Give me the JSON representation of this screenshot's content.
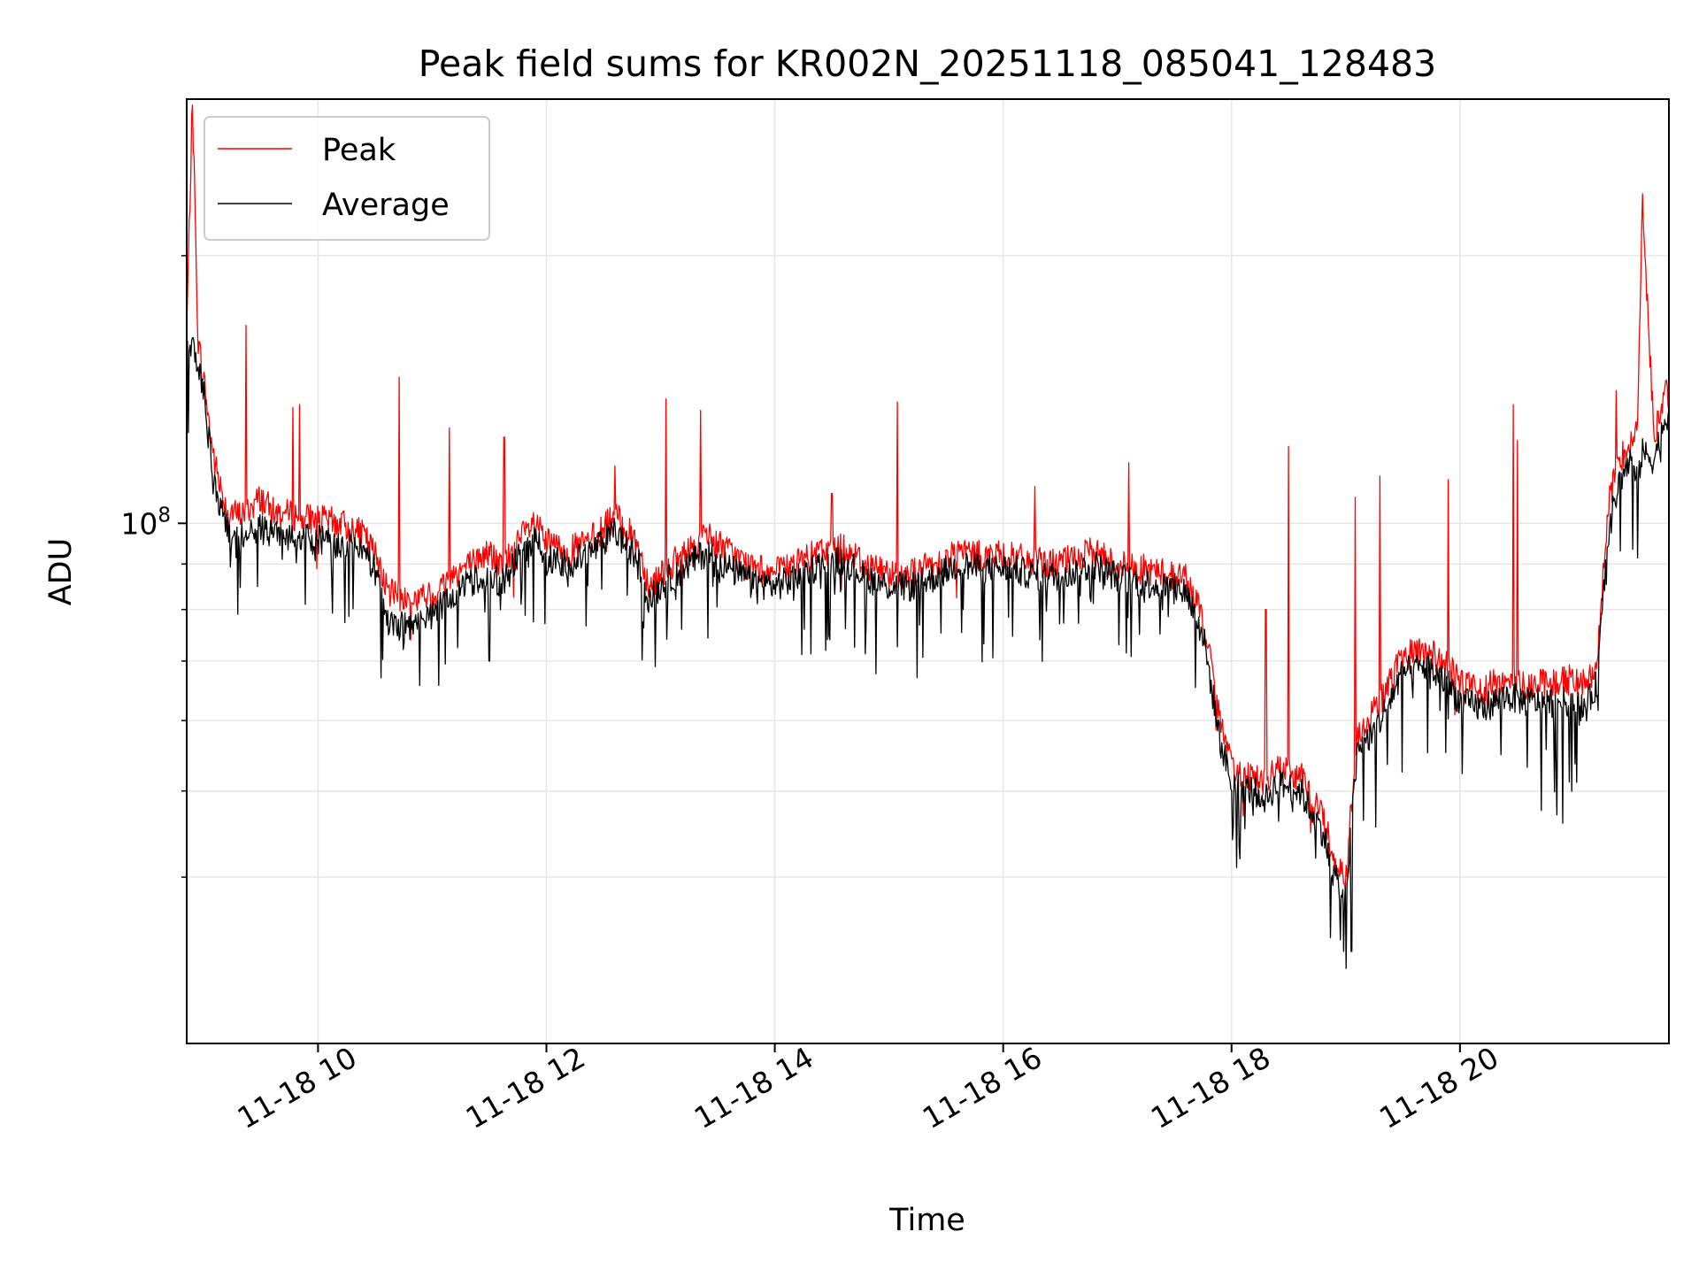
{
  "chart_data": {
    "type": "line",
    "title": "Peak field sums for KR002N_20251118_085041_128483",
    "xlabel": "Time",
    "ylabel": "ADU",
    "yscale": "log",
    "ylim": [
      26000000,
      300000000
    ],
    "xlim": [
      8.85,
      21.83
    ],
    "grid": true,
    "legend_position": "top-left",
    "x_ticks": [
      {
        "value": 10,
        "label": "11-18 10"
      },
      {
        "value": 12,
        "label": "11-18 12"
      },
      {
        "value": 14,
        "label": "11-18 14"
      },
      {
        "value": 16,
        "label": "11-18 16"
      },
      {
        "value": 18,
        "label": "11-18 18"
      },
      {
        "value": 20,
        "label": "11-18 20"
      }
    ],
    "y_major_tick": {
      "value": 100000000,
      "base": "10",
      "exponent": "8"
    },
    "y_minor_ticks": [
      40000000,
      50000000,
      60000000,
      70000000,
      80000000,
      90000000,
      200000000,
      300000000
    ],
    "series": [
      {
        "name": "Peak",
        "color": "#ff0000",
        "x": [
          8.85,
          8.9,
          8.95,
          9.0,
          9.05,
          9.1,
          9.2,
          9.3,
          9.4,
          9.5,
          9.6,
          9.8,
          10.0,
          10.2,
          10.4,
          10.55,
          10.6,
          10.8,
          11.0,
          11.2,
          11.4,
          11.5,
          11.6,
          11.8,
          11.9,
          12.0,
          12.2,
          12.4,
          12.6,
          12.8,
          12.9,
          13.0,
          13.2,
          13.4,
          13.6,
          13.8,
          14.0,
          14.2,
          14.4,
          14.6,
          14.8,
          15.0,
          15.2,
          15.4,
          15.6,
          15.8,
          16.0,
          16.2,
          16.4,
          16.6,
          16.8,
          17.0,
          17.2,
          17.4,
          17.6,
          17.75,
          17.9,
          18.0,
          18.2,
          18.3,
          18.4,
          18.6,
          18.8,
          18.9,
          19.0,
          19.1,
          19.3,
          19.5,
          19.7,
          19.9,
          20.0,
          20.2,
          20.4,
          20.6,
          20.8,
          21.0,
          21.1,
          21.2,
          21.3,
          21.4,
          21.5,
          21.55,
          21.6,
          21.7,
          21.8
        ],
        "y": [
          165000000,
          300000000,
          160000000,
          145000000,
          128000000,
          116000000,
          104000000,
          102000000,
          104000000,
          107000000,
          103000000,
          102000000,
          101000000,
          100000000,
          97000000,
          90000000,
          84000000,
          82000000,
          83000000,
          88000000,
          91000000,
          93000000,
          89000000,
          97000000,
          100000000,
          95000000,
          93000000,
          96000000,
          102000000,
          95000000,
          85000000,
          88000000,
          92000000,
          97000000,
          93000000,
          89000000,
          88000000,
          90000000,
          93000000,
          94000000,
          90000000,
          88000000,
          88000000,
          90000000,
          93000000,
          92000000,
          92000000,
          91000000,
          90000000,
          91000000,
          93000000,
          90000000,
          89000000,
          88000000,
          87000000,
          78000000,
          60000000,
          53000000,
          52000000,
          51000000,
          53000000,
          52000000,
          47000000,
          42000000,
          40000000,
          58000000,
          63000000,
          71000000,
          72000000,
          69000000,
          66000000,
          65000000,
          67000000,
          66000000,
          66000000,
          67000000,
          66000000,
          70000000,
          105000000,
          118000000,
          125000000,
          126000000,
          230000000,
          125000000,
          140000000
        ]
      },
      {
        "name": "Average",
        "color": "#000000",
        "x": [
          8.85,
          8.9,
          8.95,
          9.0,
          9.05,
          9.1,
          9.2,
          9.3,
          9.4,
          9.5,
          9.6,
          9.8,
          10.0,
          10.2,
          10.4,
          10.55,
          10.6,
          10.8,
          11.0,
          11.2,
          11.4,
          11.5,
          11.6,
          11.8,
          11.9,
          12.0,
          12.2,
          12.4,
          12.6,
          12.8,
          12.9,
          13.0,
          13.2,
          13.4,
          13.6,
          13.8,
          14.0,
          14.2,
          14.4,
          14.6,
          14.8,
          15.0,
          15.2,
          15.4,
          15.6,
          15.8,
          16.0,
          16.2,
          16.4,
          16.6,
          16.8,
          17.0,
          17.2,
          17.4,
          17.6,
          17.75,
          17.9,
          18.0,
          18.2,
          18.3,
          18.4,
          18.6,
          18.8,
          18.9,
          19.0,
          19.1,
          19.3,
          19.5,
          19.7,
          19.9,
          20.0,
          20.2,
          20.4,
          20.6,
          20.8,
          21.0,
          21.1,
          21.2,
          21.3,
          21.4,
          21.5,
          21.55,
          21.6,
          21.7,
          21.8
        ],
        "y": [
          155000000,
          160000000,
          150000000,
          140000000,
          122000000,
          110000000,
          98000000,
          96000000,
          98000000,
          99000000,
          97000000,
          96000000,
          96000000,
          95000000,
          93000000,
          86000000,
          78000000,
          76000000,
          79000000,
          84000000,
          87000000,
          89000000,
          85000000,
          93000000,
          96000000,
          91000000,
          90000000,
          93000000,
          98000000,
          91000000,
          82000000,
          85000000,
          89000000,
          93000000,
          89000000,
          86000000,
          85000000,
          87000000,
          90000000,
          91000000,
          87000000,
          85000000,
          85000000,
          87000000,
          90000000,
          89000000,
          89000000,
          88000000,
          87000000,
          88000000,
          90000000,
          87000000,
          86000000,
          85000000,
          84000000,
          75000000,
          57000000,
          51000000,
          50000000,
          49000000,
          51000000,
          50000000,
          45000000,
          40000000,
          38000000,
          55000000,
          60000000,
          68000000,
          69000000,
          66000000,
          63000000,
          62000000,
          64000000,
          63000000,
          63000000,
          63000000,
          62000000,
          66000000,
          98000000,
          112000000,
          118000000,
          112000000,
          120000000,
          118000000,
          132000000
        ]
      }
    ],
    "peak_spikes": [
      {
        "x": 9.37,
        "y": 167000000
      },
      {
        "x": 9.78,
        "y": 135000000
      },
      {
        "x": 9.84,
        "y": 136000000
      },
      {
        "x": 10.71,
        "y": 146000000
      },
      {
        "x": 11.15,
        "y": 128000000
      },
      {
        "x": 11.63,
        "y": 125000000
      },
      {
        "x": 12.6,
        "y": 116000000
      },
      {
        "x": 13.05,
        "y": 138000000
      },
      {
        "x": 13.35,
        "y": 134000000
      },
      {
        "x": 14.5,
        "y": 108000000
      },
      {
        "x": 15.07,
        "y": 137000000
      },
      {
        "x": 16.28,
        "y": 110000000
      },
      {
        "x": 17.1,
        "y": 117000000
      },
      {
        "x": 18.5,
        "y": 122000000
      },
      {
        "x": 18.3,
        "y": 80000000
      },
      {
        "x": 19.08,
        "y": 107000000
      },
      {
        "x": 19.3,
        "y": 113000000
      },
      {
        "x": 19.9,
        "y": 112000000
      },
      {
        "x": 20.47,
        "y": 136000000
      },
      {
        "x": 20.5,
        "y": 124000000
      },
      {
        "x": 21.37,
        "y": 141000000
      }
    ],
    "average_dips": [
      {
        "x": 10.55,
        "y": 67000000
      },
      {
        "x": 11.5,
        "y": 70000000
      },
      {
        "x": 12.95,
        "y": 69000000
      },
      {
        "x": 18.25,
        "y": 48000000
      },
      {
        "x": 18.95,
        "y": 34000000
      },
      {
        "x": 18.98,
        "y": 33000000
      },
      {
        "x": 19.05,
        "y": 33000000
      },
      {
        "x": 20.85,
        "y": 47000000
      },
      {
        "x": 20.9,
        "y": 46000000
      }
    ]
  },
  "legend": {
    "items": [
      {
        "label": "Peak",
        "color": "#ff0000"
      },
      {
        "label": "Average",
        "color": "#000000"
      }
    ]
  }
}
